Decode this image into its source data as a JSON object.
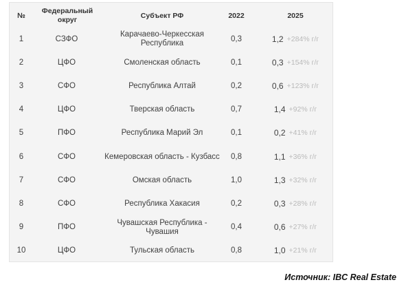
{
  "table": {
    "headers": {
      "num": "№",
      "district": "Федеральный округ",
      "subject": "Субъект РФ",
      "y2022": "2022",
      "y2025": "2025"
    },
    "rows": [
      {
        "num": "1",
        "district": "СЗФО",
        "subject": "Карачаево-Черкесская Республика",
        "y2022": "0,3",
        "y2025": "1,2",
        "change": "+284% г/г"
      },
      {
        "num": "2",
        "district": "ЦФО",
        "subject": "Смоленская область",
        "y2022": "0,1",
        "y2025": "0,3",
        "change": "+154% г/г"
      },
      {
        "num": "3",
        "district": "СФО",
        "subject": "Республика Алтай",
        "y2022": "0,2",
        "y2025": "0,6",
        "change": "+123% г/г"
      },
      {
        "num": "4",
        "district": "ЦФО",
        "subject": "Тверская область",
        "y2022": "0,7",
        "y2025": "1,4",
        "change": "+92% г/г"
      },
      {
        "num": "5",
        "district": "ПФО",
        "subject": "Республика Марий Эл",
        "y2022": "0,1",
        "y2025": "0,2",
        "change": "+41% г/г"
      },
      {
        "num": "6",
        "district": "СФО",
        "subject": "Кемеровская область - Кузбасс",
        "y2022": "0,8",
        "y2025": "1,1",
        "change": "+36% г/г"
      },
      {
        "num": "7",
        "district": "СФО",
        "subject": "Омская область",
        "y2022": "1,0",
        "y2025": "1,3",
        "change": "+32% г/г"
      },
      {
        "num": "8",
        "district": "СФО",
        "subject": "Республика Хакасия",
        "y2022": "0,2",
        "y2025": "0,3",
        "change": "+28% г/г"
      },
      {
        "num": "9",
        "district": "ПФО",
        "subject": "Чувашская Республика - Чувашия",
        "y2022": "0,4",
        "y2025": "0,6",
        "change": "+27% г/г"
      },
      {
        "num": "10",
        "district": "ЦФО",
        "subject": "Тульская область",
        "y2022": "0,8",
        "y2025": "1,0",
        "change": "+21% г/г"
      }
    ]
  },
  "source": "Источник: IBC Real Estate"
}
